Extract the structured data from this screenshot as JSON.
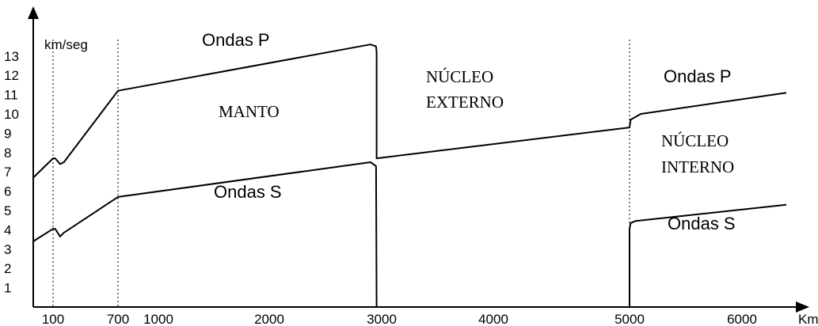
{
  "chart_data": {
    "type": "line",
    "title": "",
    "xlabel": "Km",
    "ylabel": "km/seg",
    "x_ticks": [
      "100",
      "700",
      "1000",
      "2000",
      "3000",
      "4000",
      "5000",
      "6000"
    ],
    "y_ticks": [
      "1",
      "2",
      "3",
      "4",
      "5",
      "6",
      "7",
      "8",
      "9",
      "10",
      "11",
      "12",
      "13"
    ],
    "xlim": [
      0,
      6950
    ],
    "ylim": [
      0,
      15
    ],
    "grid": false,
    "boundaries_km": [
      100,
      700,
      5000
    ],
    "series": [
      {
        "name": "Ondas P",
        "segments": [
          {
            "x": [
              0,
              100,
              120,
              165,
              200,
              700,
              2900,
              2950,
              2955,
              2955,
              2955,
              5000,
              5010,
              5100,
              6950
            ],
            "y": [
              6.7,
              7.7,
              7.7,
              7.4,
              7.5,
              11.2,
              13.6,
              13.5,
              13.2,
              13.2,
              7.7,
              9.3,
              9.7,
              10.0,
              11.1
            ]
          }
        ]
      },
      {
        "name": "Ondas S",
        "segments": [
          {
            "x": [
              0,
              100,
              120,
              165,
              200,
              700,
              2900,
              2950,
              2955
            ],
            "y": [
              3.4,
              4.05,
              4.05,
              3.65,
              3.85,
              5.7,
              7.5,
              7.3,
              0
            ]
          },
          {
            "x": [
              5000,
              5000,
              5010,
              5050,
              6950
            ],
            "y": [
              0,
              4.05,
              4.35,
              4.45,
              5.3
            ]
          }
        ]
      }
    ],
    "annotations": {
      "ondas_p_upper": "Ondas P",
      "ondas_s_left": "Ondas S",
      "manto": "MANTO",
      "nucleo_externo_1": "NÚCLEO",
      "nucleo_externo_2": "EXTERNO",
      "ondas_p_right": "Ondas P",
      "nucleo_interno_1": "NÚCLEO",
      "nucleo_interno_2": "INTERNO",
      "ondas_s_right": "Ondas S"
    }
  }
}
